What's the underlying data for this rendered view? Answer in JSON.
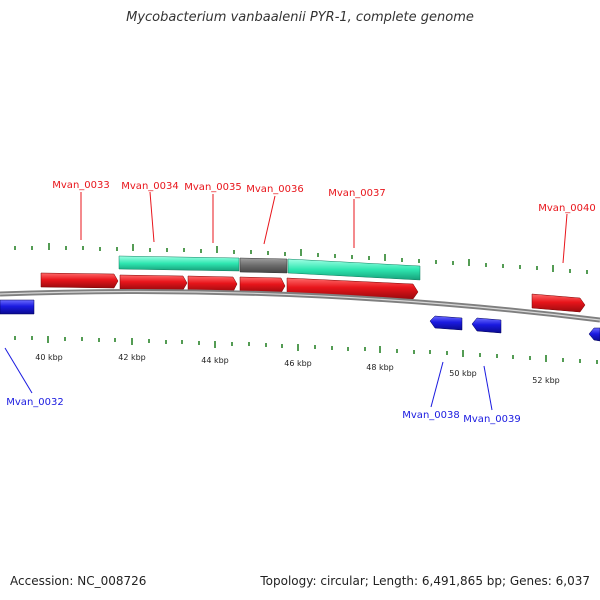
{
  "title": "Mycobacterium vanbaalenii PYR-1, complete genome",
  "colors": {
    "forward": "#e8151b",
    "reverse": "#1a1ae0",
    "operon": "#2ee6b0",
    "operon_gap": "#6b6b6b",
    "tick": "#1a7a1a",
    "backbone": "#7f7f7f"
  },
  "scale": [
    "40 kbp",
    "42 kbp",
    "44 kbp",
    "46 kbp",
    "48 kbp",
    "50 kbp",
    "52 kbp"
  ],
  "forward_labels": [
    "Mvan_0033",
    "Mvan_0034",
    "Mvan_0035",
    "Mvan_0036",
    "Mvan_0037",
    "Mvan_0040"
  ],
  "reverse_labels": [
    "Mvan_0032",
    "Mvan_0038",
    "Mvan_0039"
  ],
  "footer": {
    "accession": "Accession: NC_008726",
    "stats": "Topology: circular; Length: 6,491,865 bp; Genes: 6,037"
  }
}
